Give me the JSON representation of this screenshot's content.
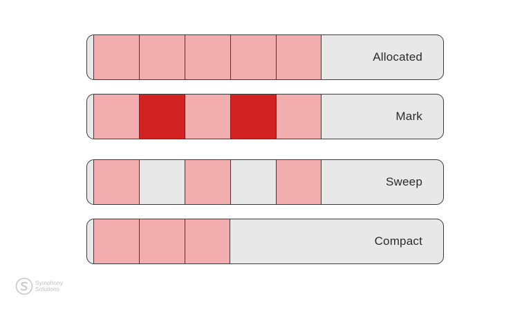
{
  "rows": [
    {
      "label": "Allocated",
      "cells": [
        "allocated",
        "allocated",
        "allocated",
        "allocated",
        "allocated"
      ]
    },
    {
      "label": "Mark",
      "cells": [
        "allocated",
        "marked",
        "allocated",
        "marked",
        "allocated"
      ]
    },
    {
      "label": "Sweep",
      "cells": [
        "allocated",
        "free",
        "allocated",
        "free",
        "allocated"
      ]
    },
    {
      "label": "Compact",
      "cells": [
        "allocated",
        "allocated",
        "allocated"
      ]
    }
  ],
  "colors": {
    "allocated": "#f2aeaf",
    "marked": "#d22222",
    "free": "#e8e8e8",
    "border": "#3a3a3a"
  },
  "logo": {
    "line1": "Symphony",
    "line2": "Solutions",
    "icon": "symphony-s-icon"
  }
}
